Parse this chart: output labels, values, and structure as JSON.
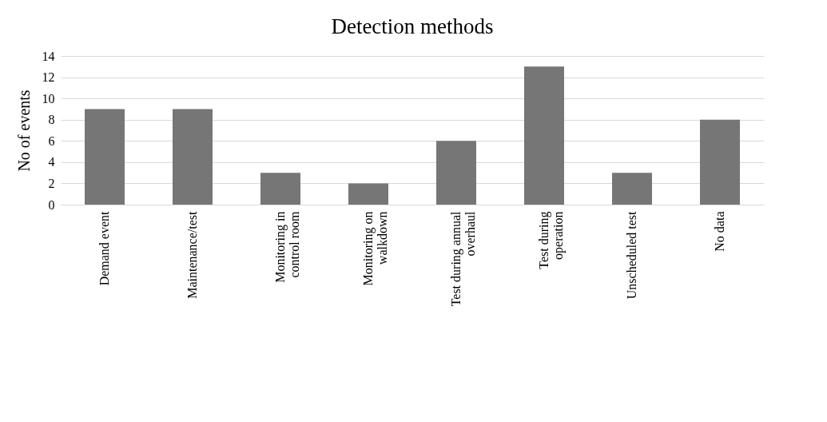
{
  "chart_data": {
    "type": "bar",
    "title": "Detection methods",
    "ylabel": "No of events",
    "categories": [
      "Demand event",
      "Maintenance/test",
      "Monitoring in control room",
      "Monitoring on walkdown",
      "Test during annual overhaul",
      "Test during operation",
      "Unscheduled test",
      "No data"
    ],
    "values": [
      9,
      9,
      3,
      2,
      6,
      13,
      3,
      8
    ],
    "color": "#767676",
    "ylim": [
      0,
      14
    ],
    "yticks": [
      0,
      2,
      4,
      6,
      8,
      10,
      12,
      14
    ],
    "grid": "y"
  }
}
